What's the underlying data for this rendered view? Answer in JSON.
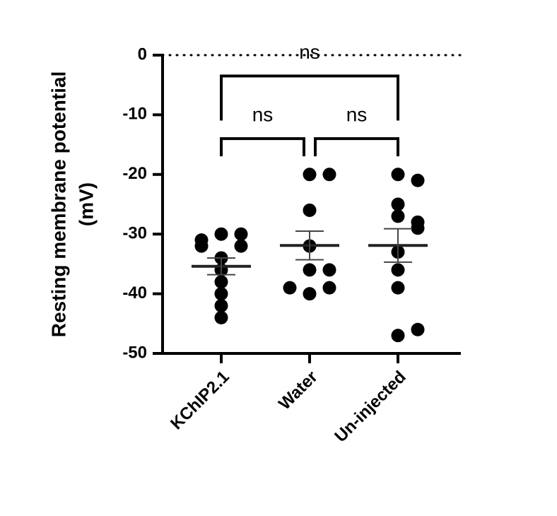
{
  "chart_data": {
    "type": "scatter",
    "ylabel": [
      "Resting membrane potential",
      "(mV)"
    ],
    "categories": [
      "KChIP2.1",
      "Water",
      "Un-injected"
    ],
    "series": [
      {
        "name": "KChIP2.1",
        "color": "#000000",
        "values": [
          -30,
          -30,
          -31,
          -32,
          -32,
          -34,
          -36,
          -38,
          -40,
          -42,
          -44
        ]
      },
      {
        "name": "Water",
        "color": "#000000",
        "values": [
          -20,
          -20,
          -26,
          -32,
          -36,
          -36,
          -40,
          -39,
          -39
        ]
      },
      {
        "name": "Un-injected",
        "color": "#000000",
        "values": [
          -20,
          -21,
          -25,
          -27,
          -28,
          -29,
          -33,
          -36,
          -39,
          -47,
          -46
        ]
      }
    ],
    "means": [
      -35.4,
      -31.9,
      -31.9
    ],
    "sem": [
      1.4,
      2.4,
      2.8
    ],
    "comparisons": [
      {
        "groups": [
          0,
          1
        ],
        "y": -14,
        "label": "ns"
      },
      {
        "groups": [
          1,
          2
        ],
        "y": -14,
        "label": "ns"
      },
      {
        "groups": [
          0,
          2
        ],
        "y": -3.5,
        "label": "ns"
      }
    ],
    "hline": 0,
    "ylim": [
      -50,
      0
    ],
    "yticks": [
      0,
      -10,
      -20,
      -30,
      -40,
      -50
    ]
  }
}
